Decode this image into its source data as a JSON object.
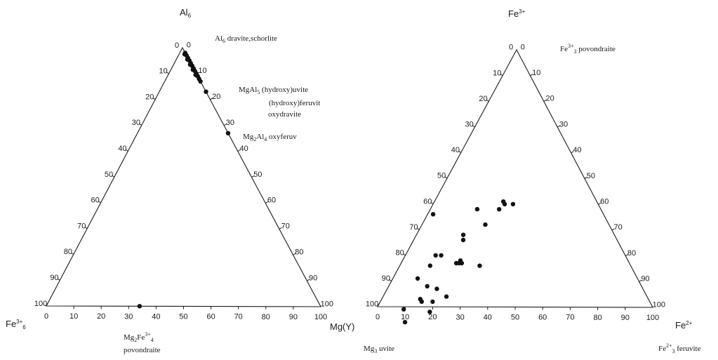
{
  "chart_data": [
    {
      "type": "scatter",
      "subtype": "ternary",
      "title": "",
      "vertices": {
        "top": "Al6",
        "left": "Fe3+6",
        "right": "Mg(Y)"
      },
      "vertex_labels": {
        "top": {
          "main": "Al",
          "sub": "6",
          "sup": ""
        },
        "left": {
          "main": "Fe",
          "sub": "6",
          "sup": "3+"
        },
        "right": {
          "main": "Mg(Y)",
          "sub": "",
          "sup": ""
        }
      },
      "ticks": [
        "0",
        "10",
        "20",
        "30",
        "40",
        "50",
        "60",
        "70",
        "80",
        "90",
        "100"
      ],
      "annotations": [
        {
          "id": "al6",
          "parts": [
            {
              "t": "Al"
            },
            {
              "t": "6",
              "sub": true
            },
            {
              "t": " dravite,schorlite"
            }
          ]
        },
        {
          "id": "mgal5",
          "parts": [
            {
              "t": "MgAl"
            },
            {
              "t": "5",
              "sub": true
            },
            {
              "t": " (hydroxy)uvite"
            }
          ]
        },
        {
          "id": "hferuvit",
          "parts": [
            {
              "t": "(hydroxy)feruvit"
            }
          ]
        },
        {
          "id": "oxydravite",
          "parts": [
            {
              "t": "oxydravite"
            }
          ]
        },
        {
          "id": "mg2al4",
          "parts": [
            {
              "t": "Mg"
            },
            {
              "t": "2",
              "sub": true
            },
            {
              "t": "Al"
            },
            {
              "t": "4",
              "sub": true
            },
            {
              "t": " oxyferuv"
            }
          ]
        },
        {
          "id": "mg2fe",
          "parts": [
            {
              "t": "Mg"
            },
            {
              "t": "2",
              "sub": true
            },
            {
              "t": "Fe"
            },
            {
              "t": "3+",
              "sup": true
            },
            {
              "t": "4",
              "sub": true
            }
          ]
        },
        {
          "id": "povondraite",
          "parts": [
            {
              "t": "povondraite"
            }
          ]
        }
      ],
      "points": [
        {
          "right": 0.02,
          "left": 0.0
        },
        {
          "right": 0.03,
          "left": 0.0
        },
        {
          "right": 0.04,
          "left": 0.0
        },
        {
          "right": 0.05,
          "left": 0.0
        },
        {
          "right": 0.06,
          "left": 0.0
        },
        {
          "right": 0.07,
          "left": 0.0
        },
        {
          "right": 0.08,
          "left": 0.0
        },
        {
          "right": 0.09,
          "left": 0.0
        },
        {
          "right": 0.1,
          "left": 0.0
        },
        {
          "right": 0.11,
          "left": 0.0
        },
        {
          "right": 0.12,
          "left": 0.0
        },
        {
          "right": 0.13,
          "left": 0.0
        },
        {
          "right": 0.02,
          "left": 0.005
        },
        {
          "right": 0.04,
          "left": 0.005
        },
        {
          "right": 0.06,
          "left": 0.005
        },
        {
          "right": 0.08,
          "left": 0.005
        },
        {
          "right": 0.1,
          "left": 0.005
        },
        {
          "right": 0.17,
          "left": 0.0
        },
        {
          "right": 0.33,
          "left": 0.0
        },
        {
          "right": 0.34,
          "left": 0.66
        }
      ]
    },
    {
      "type": "scatter",
      "subtype": "ternary",
      "title": "",
      "vertices": {
        "top": "Fe3+",
        "left": "Mg3 uvite",
        "right": "Fe2+"
      },
      "vertex_labels": {
        "top": {
          "main": "Fe",
          "sub": "",
          "sup": "3+"
        },
        "right": {
          "main": "Fe",
          "sub": "",
          "sup": "2+"
        }
      },
      "ticks": [
        "0",
        "10",
        "20",
        "30",
        "40",
        "50",
        "60",
        "70",
        "80",
        "90",
        "100"
      ],
      "annotations": [
        {
          "id": "fe3pov",
          "parts": [
            {
              "t": "Fe"
            },
            {
              "t": "3+",
              "sup": true
            },
            {
              "t": "3",
              "sub": true
            },
            {
              "t": " povondraite"
            }
          ]
        },
        {
          "id": "mg3uvite",
          "parts": [
            {
              "t": "Mg"
            },
            {
              "t": "3",
              "sub": true
            },
            {
              "t": " uvite"
            }
          ]
        },
        {
          "id": "fe2feruvite",
          "parts": [
            {
              "t": "Fe"
            },
            {
              "t": "2+",
              "sup": true
            },
            {
              "t": "3",
              "sub": true
            },
            {
              "t": " feruvite"
            }
          ]
        }
      ],
      "points": [
        {
          "right": 0.02,
          "left": 0.62
        },
        {
          "right": 0.17,
          "left": 0.45
        },
        {
          "right": 0.25,
          "left": 0.34
        },
        {
          "right": 0.26,
          "left": 0.34
        },
        {
          "right": 0.29,
          "left": 0.31
        },
        {
          "right": 0.25,
          "left": 0.37
        },
        {
          "right": 0.17,
          "left": 0.55
        },
        {
          "right": 0.18,
          "left": 0.56
        },
        {
          "right": 0.23,
          "left": 0.45
        },
        {
          "right": 0.11,
          "left": 0.69
        },
        {
          "right": 0.13,
          "left": 0.67
        },
        {
          "right": 0.11,
          "left": 0.73
        },
        {
          "right": 0.21,
          "left": 0.61
        },
        {
          "right": 0.22,
          "left": 0.61
        },
        {
          "right": 0.21,
          "left": 0.62
        },
        {
          "right": 0.2,
          "left": 0.63
        },
        {
          "right": 0.29,
          "left": 0.55
        },
        {
          "right": 0.09,
          "left": 0.8
        },
        {
          "right": 0.14,
          "left": 0.78
        },
        {
          "right": 0.18,
          "left": 0.75
        },
        {
          "right": 0.14,
          "left": 0.83
        },
        {
          "right": 0.15,
          "left": 0.83
        },
        {
          "right": 0.19,
          "left": 0.79
        },
        {
          "right": 0.23,
          "left": 0.73
        },
        {
          "right": 0.1,
          "left": 0.91
        },
        {
          "right": 0.13,
          "left": 0.93
        },
        {
          "right": 0.2,
          "left": 0.82
        }
      ]
    }
  ]
}
